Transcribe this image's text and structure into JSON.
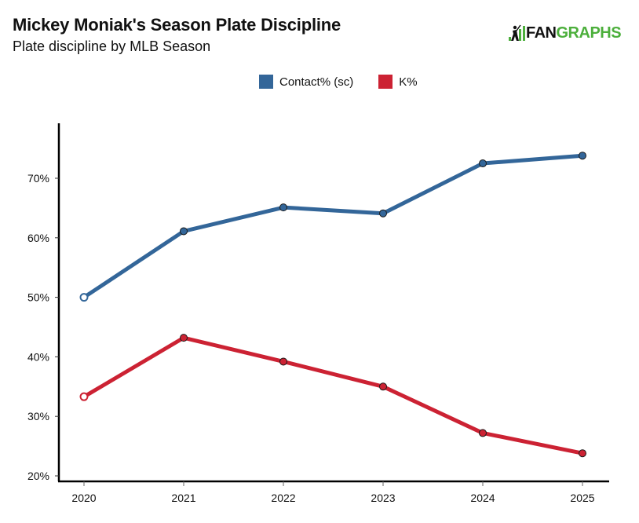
{
  "header": {
    "title": "Mickey Moniak's Season Plate Discipline",
    "subtitle": "Plate discipline by MLB Season"
  },
  "logo": {
    "icon": "batter-bars-icon",
    "text_fan": "FAN",
    "text_graphs": "GRAPHS",
    "colors": {
      "fan": "#111111",
      "graphs": "#4caf3c"
    }
  },
  "chart_data": {
    "type": "line",
    "title": "Mickey Moniak's Season Plate Discipline",
    "subtitle": "Plate discipline by MLB Season",
    "xlabel": "",
    "ylabel": "",
    "x": [
      "2020",
      "2021",
      "2022",
      "2023",
      "2024",
      "2025"
    ],
    "ylim": [
      19,
      79
    ],
    "yticks": [
      20,
      30,
      40,
      50,
      60,
      70
    ],
    "ytick_labels": [
      "20%",
      "30%",
      "40%",
      "50%",
      "60%",
      "70%"
    ],
    "grid": false,
    "legend_position": "top-center",
    "series": [
      {
        "name": "Contact% (sc)",
        "color": "#336699",
        "values": [
          50.0,
          61.1,
          65.1,
          64.1,
          72.5,
          73.8
        ],
        "hollow_first_point": true
      },
      {
        "name": "K%",
        "color": "#cc2233",
        "values": [
          33.3,
          43.2,
          39.2,
          35.0,
          27.2,
          23.8
        ],
        "hollow_first_point": true
      }
    ]
  }
}
